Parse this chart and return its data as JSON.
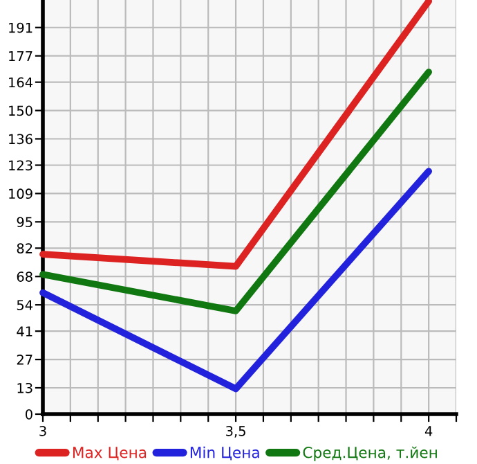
{
  "chart_data": {
    "type": "line",
    "x": [
      3,
      3.5,
      4
    ],
    "series": [
      {
        "name": "Max Цена",
        "color": "#dd2222",
        "values": [
          79,
          73,
          204
        ]
      },
      {
        "name": "Min Цена",
        "color": "#2222dd",
        "values": [
          60,
          12.5,
          120
        ]
      },
      {
        "name": "Сред.Цена, т.йен",
        "color": "#117711",
        "values": [
          69,
          51,
          169
        ]
      }
    ],
    "xlim": [
      3,
      4.0714
    ],
    "xticks": [
      {
        "value": 3,
        "label": "3"
      },
      {
        "value": 3.0714,
        "label": null
      },
      {
        "value": 3.1429,
        "label": null
      },
      {
        "value": 3.2143,
        "label": null
      },
      {
        "value": 3.2857,
        "label": null
      },
      {
        "value": 3.3571,
        "label": null
      },
      {
        "value": 3.4286,
        "label": null
      },
      {
        "value": 3.5,
        "label": "3,5"
      },
      {
        "value": 3.5714,
        "label": null
      },
      {
        "value": 3.6429,
        "label": null
      },
      {
        "value": 3.7143,
        "label": null
      },
      {
        "value": 3.7857,
        "label": null
      },
      {
        "value": 3.8571,
        "label": null
      },
      {
        "value": 3.9286,
        "label": null
      },
      {
        "value": 4,
        "label": "4"
      },
      {
        "value": 4.0714,
        "label": null
      }
    ],
    "ylim": [
      0,
      204.6
    ],
    "yticks": [
      0,
      13,
      27,
      41,
      54,
      68,
      82,
      95,
      109,
      123,
      136,
      150,
      164,
      177,
      191
    ],
    "grid": true,
    "legend": "bottom",
    "marker": "none",
    "line_style": "solid"
  }
}
